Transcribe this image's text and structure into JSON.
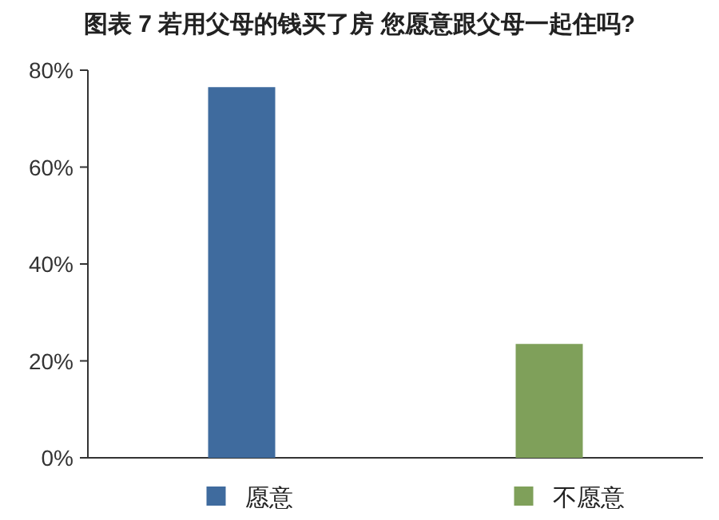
{
  "chart_data": {
    "type": "bar",
    "title": "图表 7 若用父母的钱买了房 您愿意跟父母一起住吗?",
    "categories": [
      null,
      null
    ],
    "series": [
      {
        "name": "愿意",
        "color": "#3f6b9e",
        "values": [
          76.5,
          null
        ]
      },
      {
        "name": "不愿意",
        "color": "#7fa05a",
        "values": [
          null,
          23.5
        ]
      }
    ],
    "ylim": [
      0,
      80
    ],
    "yticks": [
      {
        "value": 0,
        "label": "0%"
      },
      {
        "value": 20,
        "label": "20%"
      },
      {
        "value": 40,
        "label": "40%"
      },
      {
        "value": 60,
        "label": "60%"
      },
      {
        "value": 80,
        "label": "80%"
      }
    ],
    "legend": "bottom"
  }
}
